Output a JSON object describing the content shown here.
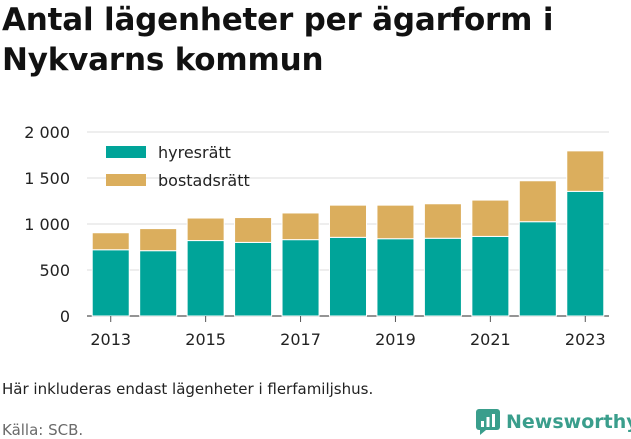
{
  "title": "Antal lägenheter per ägarform i Nykvarns kommun",
  "note": "Här inkluderas endast lägenheter i flerfamiljshus.",
  "source": "Källa: SCB.",
  "brand": {
    "name": "Newsworthy",
    "logo_icon": "newsworthy-chart-logo-icon"
  },
  "chart_data": {
    "type": "bar",
    "stacked": true,
    "categories": [
      "2013",
      "2014",
      "2015",
      "2016",
      "2017",
      "2018",
      "2019",
      "2020",
      "2021",
      "2022",
      "2023"
    ],
    "x_tick_labels": [
      "2013",
      "2015",
      "2017",
      "2019",
      "2021",
      "2023"
    ],
    "y_ticks": [
      0,
      500,
      1000,
      1500,
      2000
    ],
    "y_tick_labels": [
      "0",
      "500",
      "1 000",
      "1 500",
      "2 000"
    ],
    "ylim": [
      0,
      2000
    ],
    "grid": "horizontal",
    "legend_position": "top-left",
    "series": [
      {
        "name": "hyresrätt",
        "color": "#00a499",
        "values": [
          720,
          710,
          820,
          800,
          830,
          855,
          840,
          845,
          865,
          1025,
          1355
        ]
      },
      {
        "name": "bostadsrätt",
        "color": "#dbae5d",
        "values": [
          185,
          240,
          245,
          270,
          290,
          350,
          365,
          375,
          395,
          445,
          440
        ]
      }
    ]
  }
}
